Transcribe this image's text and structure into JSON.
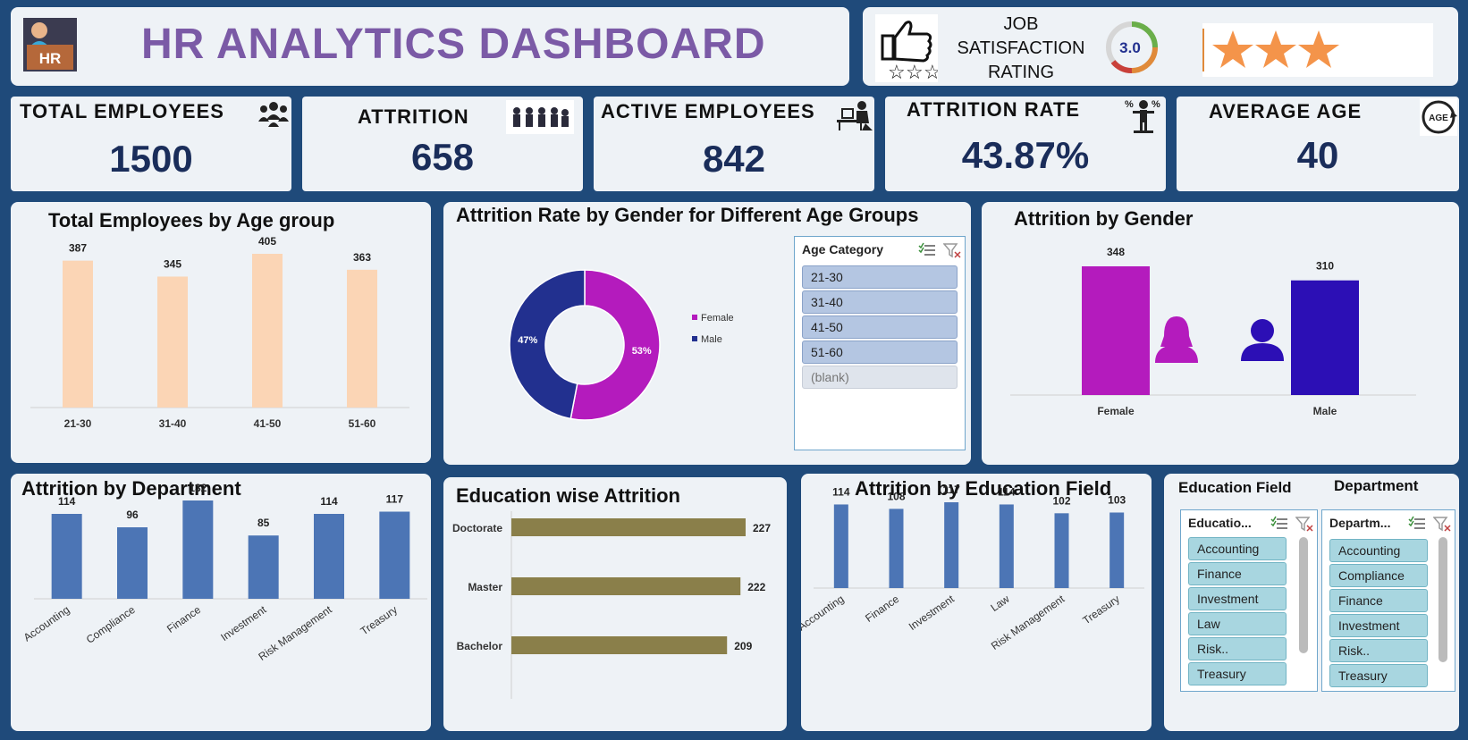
{
  "header": {
    "logo_text": "HR",
    "title": "HR ANALYTICS DASHBOARD",
    "job_satisfaction": {
      "label_lines": [
        "JOB",
        "SATISFACTION",
        "RATING"
      ],
      "rating_value": "3.0",
      "gauge_level": 0.6,
      "stars_filled": 3
    }
  },
  "kpis": [
    {
      "title": "TOTAL EMPLOYEES",
      "value": "1500",
      "icon": "people-group-icon"
    },
    {
      "title": "ATTRITION",
      "value": "658",
      "icon": "people-leaving-icon"
    },
    {
      "title": "ACTIVE EMPLOYEES",
      "value": "842",
      "icon": "person-at-desk-icon"
    },
    {
      "title": "ATTRITION RATE",
      "value": "43.87%",
      "icon": "person-percent-icon"
    },
    {
      "title": "AVERAGE AGE",
      "value": "40",
      "icon": "age-cycle-icon"
    }
  ],
  "colors": {
    "frame": "#1f4a7a",
    "panel": "#eef2f6",
    "title_purple": "#7b5aa6",
    "kpi_value": "#1a2d5a",
    "age_bar": "#fbd5b5",
    "female": "#b41bbd",
    "male": "#22308f",
    "male_bar": "#2c0fb5",
    "dept_bar": "#4c75b5",
    "edu_bar": "#8a7f4a",
    "slicer_selected": "#b4c6e2",
    "slicer_field_item": "#a8d6e0"
  },
  "charts": {
    "age_group": {
      "title": "Total Employees by Age group"
    },
    "gender_donut": {
      "title": "Attrition Rate by Gender for Different Age Groups"
    },
    "gender_bar": {
      "title": "Attrition by Gender"
    },
    "department": {
      "title": "Attrition by Department"
    },
    "education": {
      "title": "Education wise Attrition"
    },
    "education_field": {
      "title": "Attrition by Education Field"
    }
  },
  "chart_data": [
    {
      "type": "bar",
      "title": "Total Employees by Age group",
      "categories": [
        "21-30",
        "31-40",
        "41-50",
        "51-60"
      ],
      "values": [
        387,
        345,
        405,
        363
      ]
    },
    {
      "type": "pie",
      "donut": true,
      "title": "Attrition Rate by Gender for Different Age Groups",
      "labels": [
        "Female",
        "Male"
      ],
      "values": [
        53,
        47
      ],
      "value_labels": [
        "53%",
        "47%"
      ],
      "legend": "right"
    },
    {
      "type": "bar",
      "title": "Attrition by Gender",
      "categories": [
        "Female",
        "Male"
      ],
      "values": [
        348,
        310
      ]
    },
    {
      "type": "bar",
      "title": "Attrition by Department",
      "categories": [
        "Accounting",
        "Compliance",
        "Finance",
        "Investment",
        "Risk Management",
        "Treasury"
      ],
      "values": [
        114,
        96,
        132,
        85,
        114,
        117
      ]
    },
    {
      "type": "bar",
      "orientation": "horizontal",
      "title": "Education wise Attrition",
      "categories": [
        "Doctorate",
        "Master",
        "Bachelor"
      ],
      "values": [
        227,
        222,
        209
      ]
    },
    {
      "type": "bar",
      "title": "Attrition by Education Field",
      "categories": [
        "Accounting",
        "Finance",
        "Investment",
        "Law",
        "Risk Management",
        "Treasury"
      ],
      "values": [
        114,
        108,
        117,
        114,
        102,
        103
      ]
    }
  ],
  "slicers": {
    "age": {
      "header": "Age Category",
      "items": [
        {
          "label": "21-30",
          "selected": true
        },
        {
          "label": "31-40",
          "selected": true
        },
        {
          "label": "41-50",
          "selected": true
        },
        {
          "label": "51-60",
          "selected": true
        },
        {
          "label": "(blank)",
          "selected": false
        }
      ]
    },
    "education_field": {
      "caption": "Education Field",
      "header": "Educatio...",
      "items": [
        "Accounting",
        "Finance",
        "Investment",
        "Law",
        "Risk..",
        "Treasury"
      ]
    },
    "department": {
      "caption": "Department",
      "header": "Departm...",
      "items": [
        "Accounting",
        "Compliance",
        "Finance",
        "Investment",
        "Risk..",
        "Treasury"
      ]
    }
  }
}
